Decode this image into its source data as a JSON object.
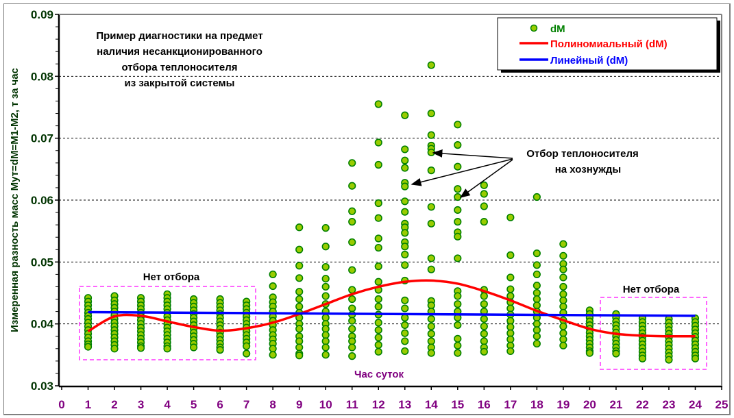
{
  "chart_data": {
    "type": "scatter",
    "title_lines": [
      "Пример диагностики на предмет",
      "наличия несанкционированного",
      "отбора теплоносителя",
      "из закрытой системы"
    ],
    "xlabel": "Час суток",
    "ylabel": "Измеренная разность масс Мут=dM=M1-M2, т за час",
    "xlim": [
      0,
      25
    ],
    "ylim": [
      0.03,
      0.09
    ],
    "x_ticks": [
      "0",
      "1",
      "2",
      "3",
      "4",
      "5",
      "6",
      "7",
      "8",
      "9",
      "10",
      "11",
      "12",
      "13",
      "14",
      "15",
      "16",
      "17",
      "18",
      "19",
      "20",
      "21",
      "22",
      "23",
      "24",
      "25"
    ],
    "y_ticks": [
      "0.03",
      "0.04",
      "0.05",
      "0.06",
      "0.07",
      "0.08",
      "0.09"
    ],
    "grid": "horizontal dashed",
    "legend": {
      "placement": "top-right",
      "entries": [
        "dM",
        "Полиномиальный (dM)",
        "Линейный (dM)"
      ]
    },
    "annotations": {
      "no_draw_left": "Нет отбора",
      "no_draw_right": "Нет отбора",
      "draw_line1": "Отбор теплоносителя",
      "draw_line2": "на хознужды"
    },
    "colors": {
      "points_fill": "#99cc00",
      "points_stroke": "#008000",
      "poly": "#ff0000",
      "linear": "#0000ff",
      "box": "#ff33ff"
    },
    "series": [
      {
        "name": "dM",
        "type": "scatter",
        "points": {
          "1": [
            0.0442,
            0.0436,
            0.043,
            0.0424,
            0.0418,
            0.0413,
            0.0408,
            0.0402,
            0.0396,
            0.039,
            0.0384,
            0.0378,
            0.0372,
            0.0367,
            0.0363
          ],
          "2": [
            0.0445,
            0.0438,
            0.0432,
            0.0426,
            0.042,
            0.0414,
            0.0408,
            0.0402,
            0.0396,
            0.039,
            0.0384,
            0.0378,
            0.0372,
            0.0366,
            0.036
          ],
          "3": [
            0.0442,
            0.0436,
            0.043,
            0.0424,
            0.0418,
            0.0412,
            0.0406,
            0.04,
            0.0394,
            0.0388,
            0.0382,
            0.0376,
            0.037,
            0.0364,
            0.0361
          ],
          "4": [
            0.0448,
            0.0442,
            0.0436,
            0.043,
            0.0424,
            0.0418,
            0.0412,
            0.0406,
            0.04,
            0.0394,
            0.0388,
            0.0382,
            0.0376,
            0.037,
            0.0364,
            0.036
          ],
          "5": [
            0.044,
            0.0434,
            0.0428,
            0.0422,
            0.0416,
            0.041,
            0.0404,
            0.0398,
            0.0392,
            0.0386,
            0.038,
            0.0374,
            0.0368,
            0.0362
          ],
          "6": [
            0.044,
            0.0434,
            0.0428,
            0.0422,
            0.0416,
            0.041,
            0.0404,
            0.0398,
            0.0392,
            0.0386,
            0.038,
            0.0374,
            0.0368,
            0.0362,
            0.0358
          ],
          "7": [
            0.0436,
            0.043,
            0.0424,
            0.0418,
            0.0412,
            0.0406,
            0.04,
            0.0394,
            0.0388,
            0.0382,
            0.0376,
            0.037,
            0.0364,
            0.0352
          ],
          "8": [
            0.048,
            0.0461,
            0.0443,
            0.0435,
            0.0428,
            0.042,
            0.0412,
            0.0405,
            0.0398,
            0.039,
            0.0382,
            0.0375,
            0.0368,
            0.036,
            0.035
          ],
          "9": [
            0.0556,
            0.052,
            0.0494,
            0.0474,
            0.0452,
            0.044,
            0.0428,
            0.0418,
            0.041,
            0.04,
            0.0392,
            0.038,
            0.0372,
            0.0362,
            0.0352,
            0.0349
          ],
          "10": [
            0.0555,
            0.0525,
            0.0492,
            0.0473,
            0.046,
            0.0445,
            0.0432,
            0.042,
            0.041,
            0.04,
            0.0392,
            0.0382,
            0.0372,
            0.0362,
            0.035
          ],
          "11": [
            0.066,
            0.0623,
            0.0582,
            0.0565,
            0.0532,
            0.0487,
            0.0455,
            0.044,
            0.0425,
            0.0415,
            0.0405,
            0.0392,
            0.038,
            0.0372,
            0.0362,
            0.0348
          ],
          "12": [
            0.0755,
            0.0693,
            0.0657,
            0.0595,
            0.0571,
            0.0538,
            0.0523,
            0.0493,
            0.0468,
            0.0455,
            0.044,
            0.0428,
            0.0415,
            0.0402,
            0.039,
            0.0378,
            0.0366,
            0.0355
          ],
          "13": [
            0.0737,
            0.0682,
            0.0664,
            0.0652,
            0.0628,
            0.0622,
            0.0598,
            0.0581,
            0.0562,
            0.0556,
            0.0547,
            0.0532,
            0.0525,
            0.0512,
            0.0495,
            0.047,
            0.0438,
            0.0425,
            0.041,
            0.0398,
            0.0385,
            0.0372,
            0.0356
          ],
          "14": [
            0.0818,
            0.074,
            0.0705,
            0.0688,
            0.0683,
            0.0677,
            0.0648,
            0.0589,
            0.0562,
            0.0506,
            0.0488,
            0.0437,
            0.043,
            0.042,
            0.0408,
            0.0396,
            0.0384,
            0.0372,
            0.0362,
            0.0353
          ],
          "15": [
            0.0722,
            0.0689,
            0.0654,
            0.0618,
            0.0605,
            0.0584,
            0.0565,
            0.0548,
            0.0541,
            0.0506,
            0.0453,
            0.0445,
            0.0432,
            0.042,
            0.041,
            0.0398,
            0.0376,
            0.0365,
            0.0353
          ],
          "16": [
            0.0624,
            0.061,
            0.059,
            0.0565,
            0.0455,
            0.0445,
            0.0432,
            0.042,
            0.0408,
            0.0396,
            0.0384,
            0.0372,
            0.0362,
            0.0355
          ],
          "17": [
            0.0572,
            0.0511,
            0.0475,
            0.0456,
            0.0445,
            0.0435,
            0.0425,
            0.0415,
            0.0405,
            0.0395,
            0.0385,
            0.0375,
            0.0365,
            0.0356
          ],
          "18": [
            0.0605,
            0.0514,
            0.0495,
            0.048,
            0.0462,
            0.045,
            0.044,
            0.043,
            0.042,
            0.041,
            0.04,
            0.039,
            0.038,
            0.0368
          ],
          "19": [
            0.0529,
            0.051,
            0.0497,
            0.0488,
            0.0475,
            0.046,
            0.0448,
            0.0438,
            0.0428,
            0.0418,
            0.0406,
            0.0396,
            0.0385,
            0.0375,
            0.0365
          ],
          "20": [
            0.0422,
            0.0416,
            0.041,
            0.0404,
            0.0398,
            0.0392,
            0.0386,
            0.038,
            0.0374,
            0.0368,
            0.0362,
            0.0356,
            0.0353
          ],
          "21": [
            0.0416,
            0.041,
            0.0404,
            0.0398,
            0.0392,
            0.0386,
            0.038,
            0.0374,
            0.0368,
            0.0362,
            0.0356,
            0.0352
          ],
          "22": [
            0.0409,
            0.0403,
            0.0397,
            0.0391,
            0.0385,
            0.0379,
            0.0373,
            0.0367,
            0.0361,
            0.0355,
            0.0349,
            0.0344
          ],
          "23": [
            0.0408,
            0.0402,
            0.0396,
            0.039,
            0.0384,
            0.0378,
            0.0372,
            0.0366,
            0.036,
            0.0354,
            0.0348,
            0.0342
          ],
          "24": [
            0.0409,
            0.0403,
            0.0397,
            0.0391,
            0.0385,
            0.0379,
            0.0373,
            0.0367,
            0.0361,
            0.0355,
            0.0349,
            0.0344
          ]
        }
      },
      {
        "name": "Полиномиальный (dM)",
        "type": "line",
        "x": [
          1,
          2,
          3,
          4,
          5,
          6,
          7,
          8,
          9,
          10,
          11,
          12,
          13,
          14,
          15,
          16,
          17,
          18,
          19,
          20,
          21,
          22,
          23,
          24
        ],
        "values": [
          0.0388,
          0.0412,
          0.0413,
          0.0404,
          0.0395,
          0.0389,
          0.0393,
          0.0402,
          0.0416,
          0.0432,
          0.0448,
          0.046,
          0.0468,
          0.047,
          0.0465,
          0.0453,
          0.0438,
          0.0421,
          0.0406,
          0.0392,
          0.0384,
          0.0381,
          0.038,
          0.038
        ]
      },
      {
        "name": "Линейный (dM)",
        "type": "line",
        "x": [
          1,
          24
        ],
        "values": [
          0.0419,
          0.0413
        ]
      }
    ]
  }
}
